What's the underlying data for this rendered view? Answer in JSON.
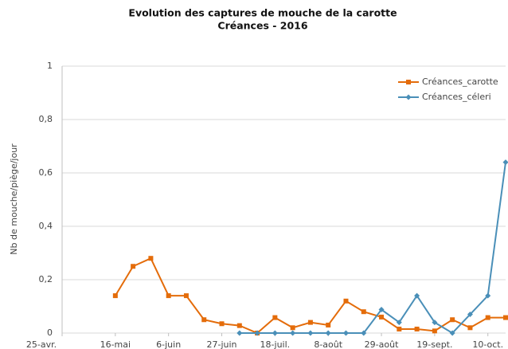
{
  "chart_data": {
    "type": "line",
    "title": "Evolution des captures de mouche de la carotte",
    "subtitle": "Créances  - 2016",
    "y_label": "Nb de mouche/piège/jour",
    "x": [
      21,
      28,
      35,
      42,
      49,
      56,
      63,
      70,
      77,
      84,
      91,
      98,
      105,
      112,
      119,
      126,
      133,
      140,
      147,
      154,
      161,
      168,
      175
    ],
    "series": [
      {
        "name": "Créances_carotte",
        "color": "#e46c0a",
        "marker": "square",
        "values": [
          0.14,
          0.25,
          0.28,
          0.14,
          0.14,
          0.05,
          0.035,
          0.028,
          0,
          0.058,
          0.02,
          0.04,
          0.03,
          0.12,
          0.08,
          0.06,
          0.015,
          0.015,
          0.008,
          0.05,
          0.02,
          0.058,
          0.058
        ]
      },
      {
        "name": "Créances_céleri",
        "color": "#4a8fb8",
        "marker": "diamond",
        "values": [
          null,
          null,
          null,
          null,
          null,
          null,
          null,
          0,
          0,
          0,
          0,
          0,
          0,
          0,
          0,
          0.088,
          0.04,
          0.14,
          0.04,
          0,
          0.07,
          0.14,
          0.64
        ]
      }
    ],
    "xlim": [
      0,
      175
    ],
    "xticks": [
      {
        "value": 0,
        "label": "25-avr."
      },
      {
        "value": 21,
        "label": "16-mai"
      },
      {
        "value": 42,
        "label": "6-juin"
      },
      {
        "value": 63,
        "label": "27-juin"
      },
      {
        "value": 84,
        "label": "18-juil."
      },
      {
        "value": 105,
        "label": "8-août"
      },
      {
        "value": 126,
        "label": "29-août"
      },
      {
        "value": 147,
        "label": "19-sept."
      },
      {
        "value": 168,
        "label": "10-oct."
      }
    ],
    "ylim": [
      0,
      1
    ],
    "yticks": [
      0,
      {
        "value": 0.2,
        "label": "0,2"
      },
      {
        "value": 0.4,
        "label": "0,4"
      },
      {
        "value": 0.6,
        "label": "0,6"
      },
      {
        "value": 0.8,
        "label": "0,8"
      },
      1
    ],
    "grid": true,
    "legend": "top-right"
  }
}
